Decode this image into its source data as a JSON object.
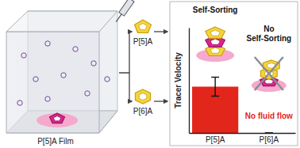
{
  "chart_data": {
    "type": "bar",
    "categories": [
      "P[5]A",
      "P[6]A"
    ],
    "values": [
      0.44,
      0
    ],
    "errors": [
      0.09,
      0
    ],
    "y_label": "Tracer Velocity",
    "ylim": [
      0,
      1
    ],
    "tick_labels": "x",
    "color": "#e3261c",
    "annotations": [
      "Self-Sorting",
      "No Self-Sorting",
      "No fluid flow"
    ]
  },
  "diagram": {
    "film_label": "P[5]A Film",
    "guests": [
      "P[5]A",
      "P[6]A"
    ]
  }
}
